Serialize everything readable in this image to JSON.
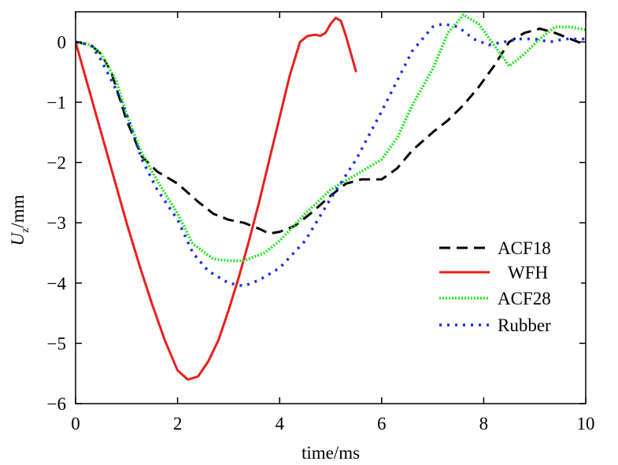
{
  "chart_data": {
    "type": "line",
    "xlabel": "time/ms",
    "ylabel": {
      "main": "U",
      "sub": "z",
      "unit": "/mm"
    },
    "xlim": [
      0,
      10
    ],
    "ylim": [
      -6,
      0.5
    ],
    "xticks": [
      0,
      2,
      4,
      6,
      8,
      10
    ],
    "yticks": [
      0,
      -1,
      -2,
      -3,
      -4,
      -5,
      -6
    ],
    "xtick_labels": [
      "0",
      "2",
      "4",
      "6",
      "8",
      "10"
    ],
    "ytick_labels": [
      "0",
      "−1",
      "−2",
      "−3",
      "−4",
      "−5",
      "−6"
    ],
    "grid": false,
    "legend_position": "lower-right",
    "series": [
      {
        "name": "ACF18",
        "color": "#000000",
        "style": "dashed",
        "x": [
          0,
          0.3,
          0.5,
          0.7,
          1.0,
          1.3,
          1.6,
          2.0,
          2.4,
          2.7,
          3.0,
          3.3,
          3.6,
          3.8,
          4.0,
          4.3,
          4.6,
          5.0,
          5.3,
          5.6,
          6.0,
          6.3,
          6.6,
          7.0,
          7.3,
          7.6,
          7.9,
          8.2,
          8.5,
          8.8,
          9.1,
          9.4,
          9.7,
          10.0
        ],
        "y": [
          0,
          -0.05,
          -0.2,
          -0.5,
          -1.3,
          -1.9,
          -2.15,
          -2.35,
          -2.65,
          -2.85,
          -2.95,
          -3.0,
          -3.1,
          -3.18,
          -3.15,
          -3.05,
          -2.85,
          -2.55,
          -2.35,
          -2.28,
          -2.28,
          -2.1,
          -1.8,
          -1.5,
          -1.3,
          -1.05,
          -0.75,
          -0.4,
          0.0,
          0.15,
          0.22,
          0.15,
          0.05,
          -0.05
        ]
      },
      {
        "name": "WFH",
        "color": "#e8201c",
        "style": "solid",
        "x": [
          0,
          0.25,
          0.5,
          0.75,
          1.0,
          1.25,
          1.5,
          1.75,
          2.0,
          2.2,
          2.4,
          2.6,
          2.8,
          3.0,
          3.2,
          3.4,
          3.6,
          3.8,
          4.0,
          4.2,
          4.4,
          4.55,
          4.7,
          4.8,
          4.9,
          5.0,
          5.1,
          5.2,
          5.3,
          5.4,
          5.5
        ],
        "y": [
          0,
          -0.75,
          -1.5,
          -2.25,
          -3.0,
          -3.7,
          -4.35,
          -4.95,
          -5.45,
          -5.6,
          -5.55,
          -5.3,
          -4.95,
          -4.45,
          -3.9,
          -3.3,
          -2.65,
          -1.95,
          -1.25,
          -0.55,
          0.0,
          0.1,
          0.12,
          0.1,
          0.15,
          0.3,
          0.4,
          0.35,
          0.1,
          -0.2,
          -0.5
        ]
      },
      {
        "name": "ACF28",
        "color": "#22e61e",
        "style": "dotted",
        "x": [
          0,
          0.3,
          0.5,
          0.8,
          1.0,
          1.3,
          1.6,
          2.0,
          2.3,
          2.7,
          3.0,
          3.3,
          3.7,
          4.0,
          4.5,
          5.0,
          5.5,
          6.0,
          6.3,
          6.6,
          7.0,
          7.3,
          7.6,
          7.9,
          8.2,
          8.5,
          8.8,
          9.1,
          9.4,
          9.7,
          10.0
        ],
        "y": [
          0,
          -0.05,
          -0.2,
          -0.65,
          -1.2,
          -1.85,
          -2.3,
          -2.85,
          -3.35,
          -3.6,
          -3.63,
          -3.63,
          -3.5,
          -3.3,
          -2.85,
          -2.45,
          -2.2,
          -1.95,
          -1.6,
          -1.05,
          -0.45,
          0.15,
          0.45,
          0.3,
          -0.05,
          -0.4,
          -0.2,
          0.05,
          0.25,
          0.25,
          0.2
        ]
      },
      {
        "name": "Rubber",
        "color": "#1b2ee8",
        "style": "dotted",
        "x": [
          0,
          0.3,
          0.5,
          0.8,
          1.0,
          1.3,
          1.6,
          2.0,
          2.3,
          2.6,
          3.0,
          3.3,
          3.6,
          4.0,
          4.5,
          5.0,
          5.5,
          6.0,
          6.3,
          6.6,
          7.0,
          7.2,
          7.5,
          7.8,
          8.1,
          8.4,
          8.7,
          9.0,
          9.3,
          9.6,
          10.0
        ],
        "y": [
          0,
          -0.05,
          -0.3,
          -0.8,
          -1.2,
          -1.95,
          -2.45,
          -2.95,
          -3.5,
          -3.8,
          -4.0,
          -4.05,
          -3.95,
          -3.75,
          -3.3,
          -2.6,
          -1.95,
          -1.15,
          -0.65,
          -0.15,
          0.25,
          0.3,
          0.25,
          0.05,
          -0.05,
          0.0,
          0.05,
          0.05,
          0.0,
          0.05,
          0.05
        ]
      }
    ]
  }
}
